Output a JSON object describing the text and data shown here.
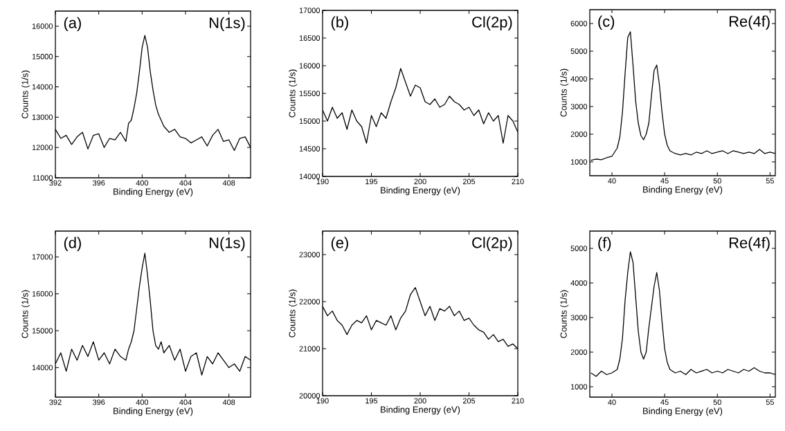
{
  "chart_data": [
    {
      "type": "line",
      "xlabel": "Binding Energy (eV)",
      "ylabel": "Counts (1/s)",
      "annotations": [
        "(a)",
        "N(1s)"
      ],
      "color": "#000000",
      "x": [
        392,
        392.5,
        393,
        393.5,
        394,
        394.5,
        395,
        395.5,
        396,
        396.5,
        397,
        397.5,
        398,
        398.5,
        398.75,
        399,
        399.25,
        399.5,
        399.75,
        400,
        400.25,
        400.5,
        400.75,
        401,
        401.25,
        401.5,
        401.75,
        402,
        402.5,
        403,
        403.5,
        404,
        404.5,
        405,
        405.5,
        406,
        406.5,
        407,
        407.5,
        408,
        408.5,
        409,
        409.5,
        410
      ],
      "values": [
        12600,
        12300,
        12400,
        12100,
        12350,
        12500,
        11950,
        12400,
        12450,
        12000,
        12300,
        12250,
        12500,
        12200,
        12800,
        12900,
        13300,
        13800,
        14500,
        15300,
        15700,
        15300,
        14500,
        13900,
        13400,
        13100,
        12900,
        12700,
        12500,
        12600,
        12350,
        12300,
        12150,
        12250,
        12350,
        12050,
        12400,
        12600,
        12200,
        12250,
        11900,
        12300,
        12350,
        12000
      ],
      "xlim": [
        392,
        410
      ],
      "ylim": [
        11000,
        16500
      ],
      "xticks": [
        392,
        396,
        400,
        404,
        408
      ],
      "yticks": [
        11000,
        12000,
        13000,
        14000,
        15000,
        16000
      ]
    },
    {
      "type": "line",
      "xlabel": "Binding Energy (eV)",
      "ylabel": "Counts (1/s)",
      "annotations": [
        "(b)",
        "Cl(2p)"
      ],
      "color": "#000000",
      "x": [
        190,
        190.5,
        191,
        191.5,
        192,
        192.5,
        193,
        193.5,
        194,
        194.5,
        195,
        195.5,
        196,
        196.5,
        197,
        197.5,
        198,
        198.5,
        199,
        199.5,
        200,
        200.5,
        201,
        201.5,
        202,
        202.5,
        203,
        203.5,
        204,
        204.5,
        205,
        205.5,
        206,
        206.5,
        207,
        207.5,
        208,
        208.5,
        209,
        209.5,
        210
      ],
      "values": [
        15200,
        15000,
        15250,
        15050,
        15150,
        14850,
        15200,
        15000,
        14900,
        14600,
        15100,
        14900,
        15150,
        15050,
        15350,
        15600,
        15950,
        15700,
        15450,
        15650,
        15600,
        15350,
        15300,
        15400,
        15250,
        15300,
        15450,
        15350,
        15300,
        15200,
        15250,
        15100,
        15200,
        14950,
        15150,
        15000,
        15100,
        14600,
        15100,
        15000,
        14800
      ],
      "xlim": [
        190,
        210
      ],
      "ylim": [
        14000,
        17000
      ],
      "xticks": [
        190,
        195,
        200,
        205,
        210
      ],
      "yticks": [
        14000,
        14500,
        15000,
        15500,
        16000,
        16500,
        17000
      ]
    },
    {
      "type": "line",
      "xlabel": "Binding Energy (eV)",
      "ylabel": "Counts (1/s)",
      "annotations": [
        "(c)",
        "Re(4f)"
      ],
      "color": "#000000",
      "x": [
        38,
        38.5,
        39,
        39.5,
        40,
        40.5,
        40.75,
        41,
        41.25,
        41.5,
        41.75,
        42,
        42.25,
        42.5,
        42.75,
        43,
        43.25,
        43.5,
        43.75,
        44,
        44.25,
        44.5,
        44.75,
        45,
        45.25,
        45.5,
        46,
        46.5,
        47,
        47.5,
        48,
        48.5,
        49,
        49.5,
        50,
        50.5,
        51,
        51.5,
        52,
        52.5,
        53,
        53.5,
        54,
        54.5,
        55,
        55.5
      ],
      "values": [
        1050,
        1100,
        1080,
        1150,
        1200,
        1500,
        1900,
        2800,
        4200,
        5500,
        5700,
        4500,
        3200,
        2400,
        1950,
        1800,
        2000,
        2400,
        3400,
        4300,
        4500,
        3800,
        2800,
        2000,
        1600,
        1400,
        1300,
        1250,
        1300,
        1250,
        1350,
        1300,
        1400,
        1300,
        1350,
        1400,
        1300,
        1400,
        1350,
        1300,
        1350,
        1300,
        1450,
        1300,
        1350,
        1300
      ],
      "xlim": [
        37.9,
        55.5
      ],
      "ylim": [
        500,
        6500
      ],
      "xticks": [
        40,
        45,
        50,
        55
      ],
      "yticks": [
        1000,
        2000,
        3000,
        4000,
        5000,
        6000
      ]
    },
    {
      "type": "line",
      "xlabel": "Binding Energy (eV)",
      "ylabel": "Counts (1/s)",
      "annotations": [
        "(d)",
        "N(1s)"
      ],
      "color": "#000000",
      "x": [
        392,
        392.5,
        393,
        393.5,
        394,
        394.5,
        395,
        395.5,
        396,
        396.5,
        397,
        397.5,
        398,
        398.5,
        398.75,
        399,
        399.25,
        399.5,
        399.75,
        400,
        400.25,
        400.5,
        400.75,
        401,
        401.25,
        401.5,
        401.75,
        402,
        402.5,
        403,
        403.5,
        404,
        404.5,
        405,
        405.5,
        406,
        406.5,
        407,
        407.5,
        408,
        408.5,
        409,
        409.5,
        410
      ],
      "values": [
        14100,
        14400,
        13900,
        14500,
        14200,
        14600,
        14300,
        14700,
        14200,
        14400,
        14100,
        14500,
        14300,
        14200,
        14500,
        14700,
        15000,
        15600,
        16200,
        16700,
        17100,
        16500,
        15800,
        15000,
        14600,
        14500,
        14700,
        14400,
        14600,
        14200,
        14500,
        13900,
        14300,
        14400,
        13800,
        14300,
        14100,
        14400,
        14200,
        14000,
        14100,
        13900,
        14300,
        14200
      ],
      "xlim": [
        392,
        410
      ],
      "ylim": [
        13200,
        17700
      ],
      "xticks": [
        392,
        396,
        400,
        404,
        408
      ],
      "yticks": [
        14000,
        15000,
        16000,
        17000
      ]
    },
    {
      "type": "line",
      "xlabel": "Binding Energy (eV)",
      "ylabel": "Counts (1/s)",
      "annotations": [
        "(e)",
        "Cl(2p)"
      ],
      "color": "#000000",
      "x": [
        190,
        190.5,
        191,
        191.5,
        192,
        192.5,
        193,
        193.5,
        194,
        194.5,
        195,
        195.5,
        196,
        196.5,
        197,
        197.5,
        198,
        198.5,
        199,
        199.5,
        200,
        200.5,
        201,
        201.5,
        202,
        202.5,
        203,
        203.5,
        204,
        204.5,
        205,
        205.5,
        206,
        206.5,
        207,
        207.5,
        208,
        208.5,
        209,
        209.5,
        210
      ],
      "values": [
        21900,
        21700,
        21800,
        21600,
        21500,
        21300,
        21500,
        21600,
        21550,
        21700,
        21400,
        21600,
        21550,
        21500,
        21700,
        21400,
        21650,
        21800,
        22150,
        22300,
        22000,
        21700,
        21900,
        21600,
        21850,
        21800,
        21900,
        21700,
        21800,
        21600,
        21650,
        21500,
        21400,
        21350,
        21200,
        21300,
        21150,
        21200,
        21050,
        21100,
        21000
      ],
      "xlim": [
        190,
        210
      ],
      "ylim": [
        20000,
        23500
      ],
      "xticks": [
        190,
        195,
        200,
        205,
        210
      ],
      "yticks": [
        20000,
        21000,
        22000,
        23000
      ]
    },
    {
      "type": "line",
      "xlabel": "Binding Energy (eV)",
      "ylabel": "Counts (1/s)",
      "annotations": [
        "(f)",
        "Re(4f)"
      ],
      "color": "#000000",
      "x": [
        38,
        38.5,
        39,
        39.5,
        40,
        40.5,
        40.75,
        41,
        41.25,
        41.5,
        41.75,
        42,
        42.25,
        42.5,
        42.75,
        43,
        43.25,
        43.5,
        43.75,
        44,
        44.25,
        44.5,
        44.75,
        45,
        45.25,
        45.5,
        46,
        46.5,
        47,
        47.5,
        48,
        48.5,
        49,
        49.5,
        50,
        50.5,
        51,
        51.5,
        52,
        52.5,
        53,
        53.5,
        54,
        54.5,
        55,
        55.5
      ],
      "values": [
        1400,
        1300,
        1450,
        1350,
        1400,
        1500,
        1800,
        2400,
        3500,
        4300,
        4900,
        4600,
        3600,
        2600,
        2000,
        1800,
        2000,
        2700,
        3300,
        3900,
        4300,
        3800,
        2900,
        2100,
        1700,
        1500,
        1400,
        1450,
        1350,
        1500,
        1400,
        1450,
        1500,
        1400,
        1450,
        1400,
        1500,
        1450,
        1400,
        1500,
        1450,
        1550,
        1450,
        1400,
        1400,
        1350
      ],
      "xlim": [
        37.9,
        55.5
      ],
      "ylim": [
        700,
        5500
      ],
      "xticks": [
        40,
        45,
        50,
        55
      ],
      "yticks": [
        1000,
        2000,
        3000,
        4000,
        5000
      ]
    }
  ]
}
